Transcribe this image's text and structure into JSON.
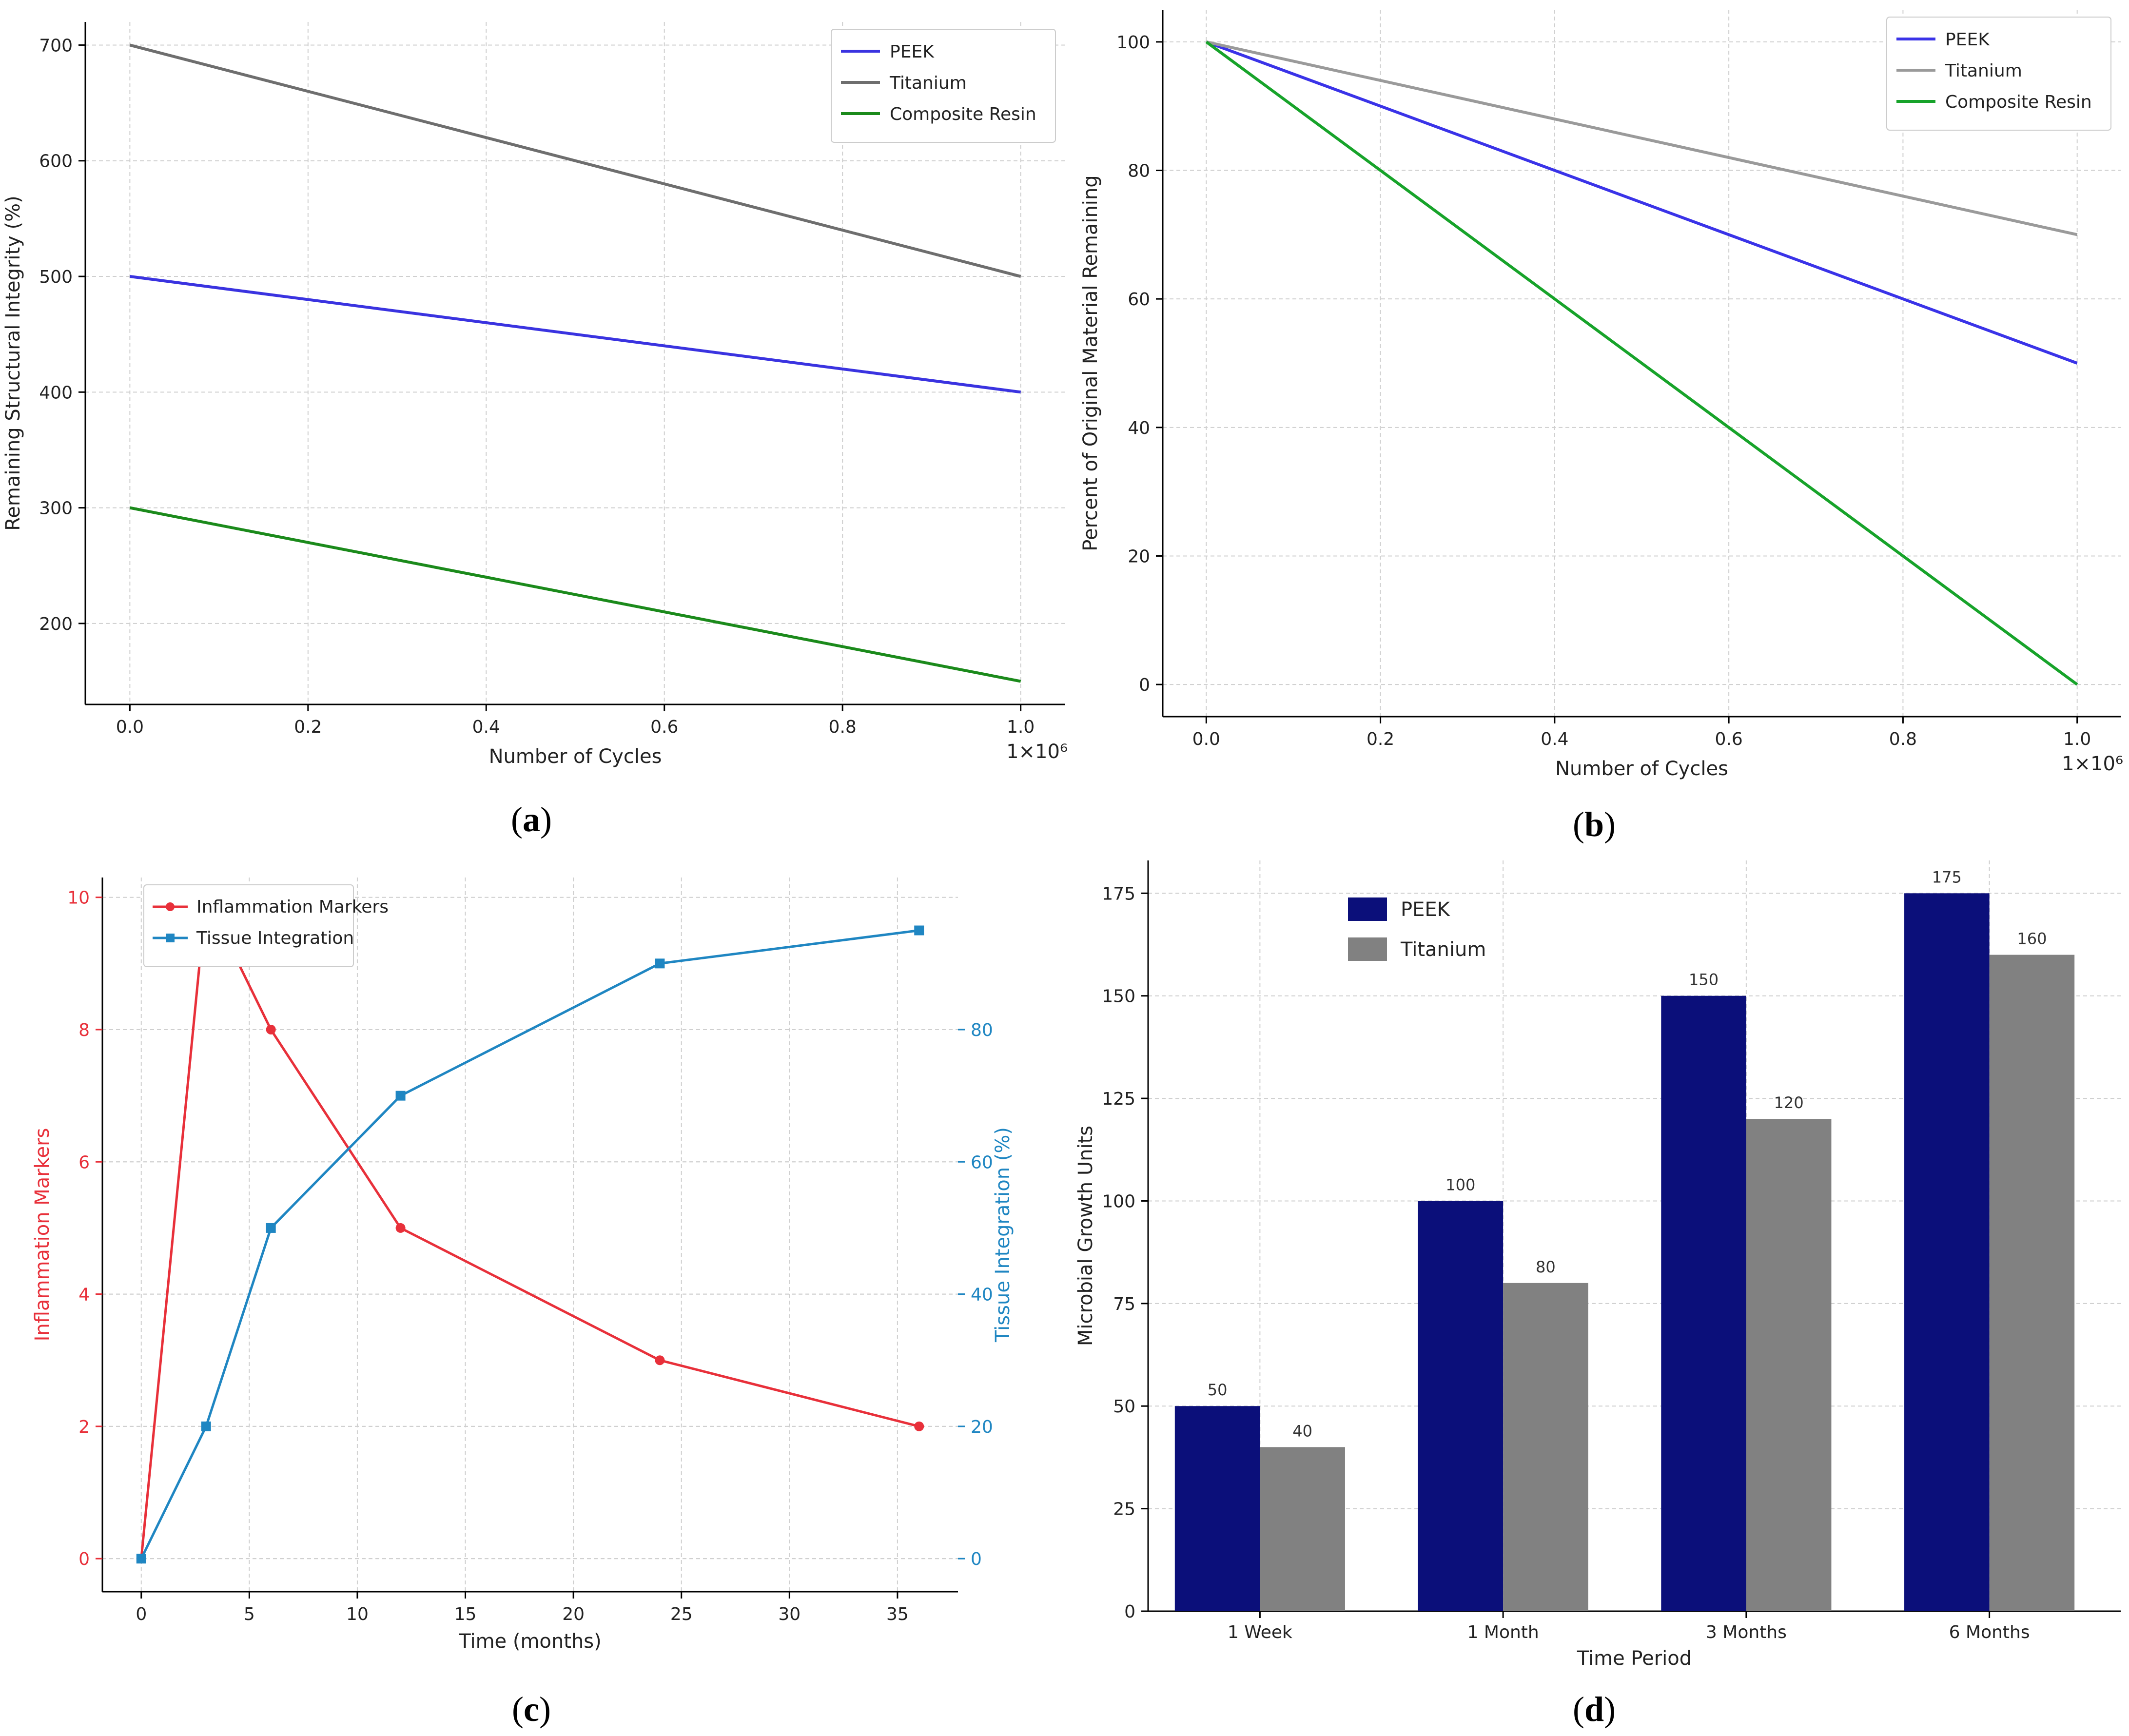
{
  "panels": [
    {
      "id": "a",
      "caption": "a",
      "chart_data": {
        "type": "line",
        "xlabel": "Number of Cycles",
        "ylabel": "Remaining Structural Integrity (%)",
        "x_multiplier": "1×10⁶",
        "xlim": [
          -0.05,
          1.05
        ],
        "ylim": [
          130,
          720
        ],
        "xticks": [
          0.0,
          0.2,
          0.4,
          0.6,
          0.8,
          1.0
        ],
        "xtick_labels": [
          "0.0",
          "0.2",
          "0.4",
          "0.6",
          "0.8",
          "1.0"
        ],
        "yticks": [
          200,
          300,
          400,
          500,
          600,
          700
        ],
        "grid": true,
        "legend_position": "top-right",
        "series": [
          {
            "name": "PEEK",
            "color": "#3a33e0",
            "x": [
              0,
              1
            ],
            "y": [
              500,
              400
            ]
          },
          {
            "name": "Titanium",
            "color": "#6e6e6e",
            "x": [
              0,
              1
            ],
            "y": [
              700,
              500
            ]
          },
          {
            "name": "Composite Resin",
            "color": "#1b8a1b",
            "x": [
              0,
              1
            ],
            "y": [
              300,
              150
            ]
          }
        ]
      }
    },
    {
      "id": "b",
      "caption": "b",
      "chart_data": {
        "type": "line",
        "xlabel": "Number of Cycles",
        "ylabel": "Percent of Original Material Remaining",
        "x_multiplier": "1×10⁶",
        "xlim": [
          -0.05,
          1.05
        ],
        "ylim": [
          -5,
          105
        ],
        "xticks": [
          0.0,
          0.2,
          0.4,
          0.6,
          0.8,
          1.0
        ],
        "xtick_labels": [
          "0.0",
          "0.2",
          "0.4",
          "0.6",
          "0.8",
          "1.0"
        ],
        "yticks": [
          0,
          20,
          40,
          60,
          80,
          100
        ],
        "grid": true,
        "legend_position": "top-right",
        "series": [
          {
            "name": "PEEK",
            "color": "#3a33e8",
            "x": [
              0,
              1
            ],
            "y": [
              100,
              50
            ]
          },
          {
            "name": "Titanium",
            "color": "#9a9a9a",
            "x": [
              0,
              1
            ],
            "y": [
              100,
              70
            ]
          },
          {
            "name": "Composite Resin",
            "color": "#17a32a",
            "x": [
              0,
              1
            ],
            "y": [
              100,
              0
            ]
          }
        ]
      }
    },
    {
      "id": "c",
      "caption": "c",
      "chart_data": {
        "type": "line",
        "xlabel": "Time (months)",
        "ylabel": "Inflammation Markers",
        "y2label": "Tissue Integration (%)",
        "xlim": [
          -1.8,
          37.8
        ],
        "ylim": [
          -0.5,
          10.3
        ],
        "y2lim": [
          -5,
          103
        ],
        "xticks": [
          0,
          5,
          10,
          15,
          20,
          25,
          30,
          35
        ],
        "yticks": [
          0,
          2,
          4,
          6,
          8,
          10
        ],
        "y2ticks": [
          0,
          20,
          40,
          60,
          80
        ],
        "grid": true,
        "legend_position": "top-left",
        "left_axis_color": "#e8303a",
        "right_axis_color": "#1f86c2",
        "series": [
          {
            "name": "Inflammation Markers",
            "axis": "left",
            "color": "#e8303a",
            "marker": "circle",
            "x": [
              0,
              3,
              6,
              12,
              24,
              36
            ],
            "y": [
              0,
              10,
              8,
              5,
              3,
              2
            ]
          },
          {
            "name": "Tissue Integration",
            "axis": "right",
            "color": "#1f86c2",
            "marker": "square",
            "x": [
              0,
              3,
              6,
              12,
              24,
              36
            ],
            "y": [
              0,
              20,
              50,
              70,
              90,
              95
            ]
          }
        ]
      }
    },
    {
      "id": "d",
      "caption": "d",
      "chart_data": {
        "type": "bar",
        "xlabel": "Time Period",
        "ylabel": "Microbial Growth Units",
        "categories": [
          "1 Week",
          "1 Month",
          "3 Months",
          "6 Months"
        ],
        "ylim": [
          0,
          183
        ],
        "yticks": [
          0,
          25,
          50,
          75,
          100,
          125,
          150,
          175
        ],
        "grid": true,
        "legend_position": "top-left",
        "series": [
          {
            "name": "PEEK",
            "color": "#0b0f7a",
            "values": [
              50,
              100,
              150,
              175
            ]
          },
          {
            "name": "Titanium",
            "color": "#818181",
            "values": [
              40,
              80,
              120,
              160
            ]
          }
        ],
        "data_labels": true
      }
    }
  ],
  "layout_hints": {
    "caption_parens": [
      "(",
      ")"
    ]
  }
}
